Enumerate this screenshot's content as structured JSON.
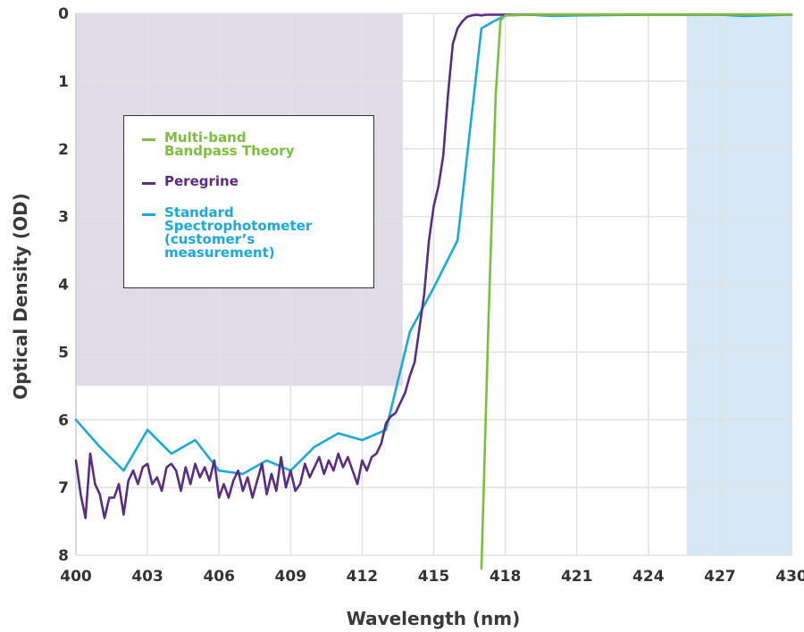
{
  "chart_data": {
    "type": "line",
    "title": "",
    "xlabel": "Wavelength (nm)",
    "ylabel": "Optical Density (OD)",
    "xlim": [
      400,
      430
    ],
    "ylim": [
      0,
      8
    ],
    "y_inverted": true,
    "grid": true,
    "xticks": [
      400,
      403,
      406,
      409,
      412,
      415,
      418,
      421,
      424,
      427,
      430
    ],
    "yticks": [
      0,
      1,
      2,
      3,
      4,
      5,
      6,
      7,
      8
    ],
    "shaded_regions": [
      {
        "x": [
          400,
          413.7
        ],
        "y": [
          0,
          5.5
        ],
        "color": "#e1dbe8"
      },
      {
        "x": [
          425.6,
          430
        ],
        "y": [
          0,
          8
        ],
        "color": "#d6e8f5"
      }
    ],
    "legend_position": "upper-left",
    "series": [
      {
        "name": "Multi-band\nBandpass Theory",
        "color": "#7cbf3b",
        "x": [
          417.0,
          417.3,
          417.6,
          417.8,
          418.0,
          419,
          421,
          424,
          427,
          430
        ],
        "y": [
          8.2,
          4.5,
          1.2,
          0.1,
          0.03,
          0.02,
          0.02,
          0.02,
          0.02,
          0.02
        ]
      },
      {
        "name": "Peregrine",
        "color": "#5b2c83",
        "x": [
          400.0,
          400.2,
          400.4,
          400.6,
          400.8,
          401.0,
          401.2,
          401.4,
          401.6,
          401.8,
          402.0,
          402.2,
          402.4,
          402.6,
          402.8,
          403.0,
          403.2,
          403.4,
          403.6,
          403.8,
          404.0,
          404.2,
          404.4,
          404.6,
          404.8,
          405.0,
          405.2,
          405.4,
          405.6,
          405.8,
          406.0,
          406.2,
          406.4,
          406.6,
          406.8,
          407.0,
          407.2,
          407.4,
          407.6,
          407.8,
          408.0,
          408.2,
          408.4,
          408.6,
          408.8,
          409.0,
          409.2,
          409.4,
          409.6,
          409.8,
          410.0,
          410.2,
          410.4,
          410.6,
          410.8,
          411.0,
          411.2,
          411.4,
          411.6,
          411.8,
          412.0,
          412.2,
          412.4,
          412.6,
          412.8,
          413.0,
          413.2,
          413.4,
          413.6,
          413.8,
          414.0,
          414.2,
          414.4,
          414.6,
          414.8,
          415.0,
          415.2,
          415.4,
          415.6,
          415.8,
          416.0,
          416.2,
          416.4,
          416.6,
          416.8,
          417.0,
          417.2,
          417.4,
          417.6,
          417.8,
          418.0,
          419,
          421,
          424,
          427,
          430
        ],
        "y": [
          6.6,
          7.1,
          7.45,
          6.5,
          6.95,
          7.1,
          7.45,
          7.15,
          7.15,
          6.95,
          7.4,
          6.9,
          6.75,
          6.95,
          6.7,
          6.65,
          6.95,
          6.85,
          7.05,
          6.7,
          6.65,
          6.75,
          7.05,
          6.7,
          6.95,
          6.65,
          6.85,
          6.7,
          6.9,
          6.6,
          7.15,
          6.95,
          7.15,
          6.9,
          6.75,
          7.05,
          6.85,
          7.15,
          6.9,
          6.65,
          7.1,
          6.8,
          7.05,
          6.55,
          7.0,
          6.75,
          7.05,
          6.95,
          6.65,
          6.85,
          6.7,
          6.55,
          6.8,
          6.6,
          6.75,
          6.5,
          6.7,
          6.55,
          6.75,
          6.95,
          6.6,
          6.75,
          6.55,
          6.5,
          6.35,
          6.05,
          5.95,
          5.9,
          5.75,
          5.6,
          5.35,
          5.15,
          4.65,
          4.15,
          3.35,
          2.85,
          2.55,
          2.1,
          1.2,
          0.45,
          0.22,
          0.12,
          0.05,
          0.03,
          0.02,
          0.03,
          0.02,
          0.02,
          0.02,
          0.02,
          0.02,
          0.02,
          0.02,
          0.02,
          0.02,
          0.02
        ]
      },
      {
        "name": "Standard\nSpectrophotometer\n(customer’s\nmeasurement)",
        "color": "#1aa9de",
        "x": [
          400,
          401,
          402,
          403,
          404,
          405,
          406,
          407,
          408,
          409,
          410,
          411,
          412,
          413,
          414,
          415,
          416,
          417,
          417.5,
          418,
          419,
          420,
          421,
          424,
          427,
          428,
          430
        ],
        "y": [
          6.0,
          6.4,
          6.75,
          6.15,
          6.5,
          6.3,
          6.75,
          6.8,
          6.6,
          6.75,
          6.4,
          6.2,
          6.3,
          6.15,
          4.7,
          4.05,
          3.35,
          0.22,
          0.12,
          0.03,
          0.02,
          0.04,
          0.03,
          0.02,
          0.02,
          0.04,
          0.02
        ]
      }
    ]
  }
}
